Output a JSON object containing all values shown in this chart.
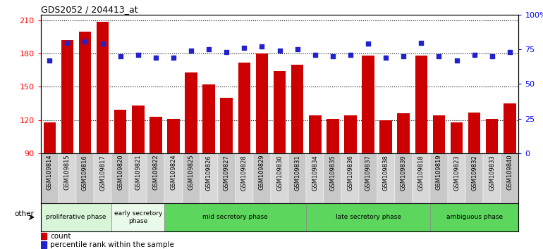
{
  "title": "GDS2052 / 204413_at",
  "samples": [
    "GSM109814",
    "GSM109815",
    "GSM109816",
    "GSM109817",
    "GSM109820",
    "GSM109821",
    "GSM109822",
    "GSM109824",
    "GSM109825",
    "GSM109826",
    "GSM109827",
    "GSM109828",
    "GSM109829",
    "GSM109830",
    "GSM109831",
    "GSM109834",
    "GSM109835",
    "GSM109836",
    "GSM109837",
    "GSM109838",
    "GSM109839",
    "GSM109818",
    "GSM109819",
    "GSM109823",
    "GSM109832",
    "GSM109833",
    "GSM109840"
  ],
  "counts": [
    118,
    192,
    200,
    209,
    129,
    133,
    123,
    121,
    163,
    152,
    140,
    172,
    180,
    164,
    170,
    124,
    121,
    124,
    178,
    120,
    126,
    178,
    124,
    118,
    127,
    121,
    135
  ],
  "percentiles": [
    67,
    80,
    81,
    79,
    70,
    71,
    69,
    69,
    74,
    75,
    73,
    76,
    77,
    74,
    75,
    71,
    70,
    71,
    79,
    69,
    70,
    80,
    70,
    67,
    71,
    70,
    73
  ],
  "phases": [
    {
      "label": "proliferative phase",
      "start": 0,
      "end": 4,
      "color": "#d8f5d8"
    },
    {
      "label": "early secretory\nphase",
      "start": 4,
      "end": 7,
      "color": "#eafaea"
    },
    {
      "label": "mid secretory phase",
      "start": 7,
      "end": 15,
      "color": "#5cd65c"
    },
    {
      "label": "late secretory phase",
      "start": 15,
      "end": 22,
      "color": "#5cd65c"
    },
    {
      "label": "ambiguous phase",
      "start": 22,
      "end": 27,
      "color": "#5cd65c"
    }
  ],
  "ylim_left": [
    90,
    215
  ],
  "ylim_right": [
    0,
    100
  ],
  "yticks_left": [
    90,
    120,
    150,
    180,
    210
  ],
  "yticks_right": [
    0,
    25,
    50,
    75,
    100
  ],
  "bar_color": "#cc0000",
  "dot_color": "#2222cc",
  "bg_color": "#ffffff",
  "tick_area_color": "#c8c8c8",
  "other_label": "other",
  "legend_count_label": "count",
  "legend_pct_label": "percentile rank within the sample"
}
